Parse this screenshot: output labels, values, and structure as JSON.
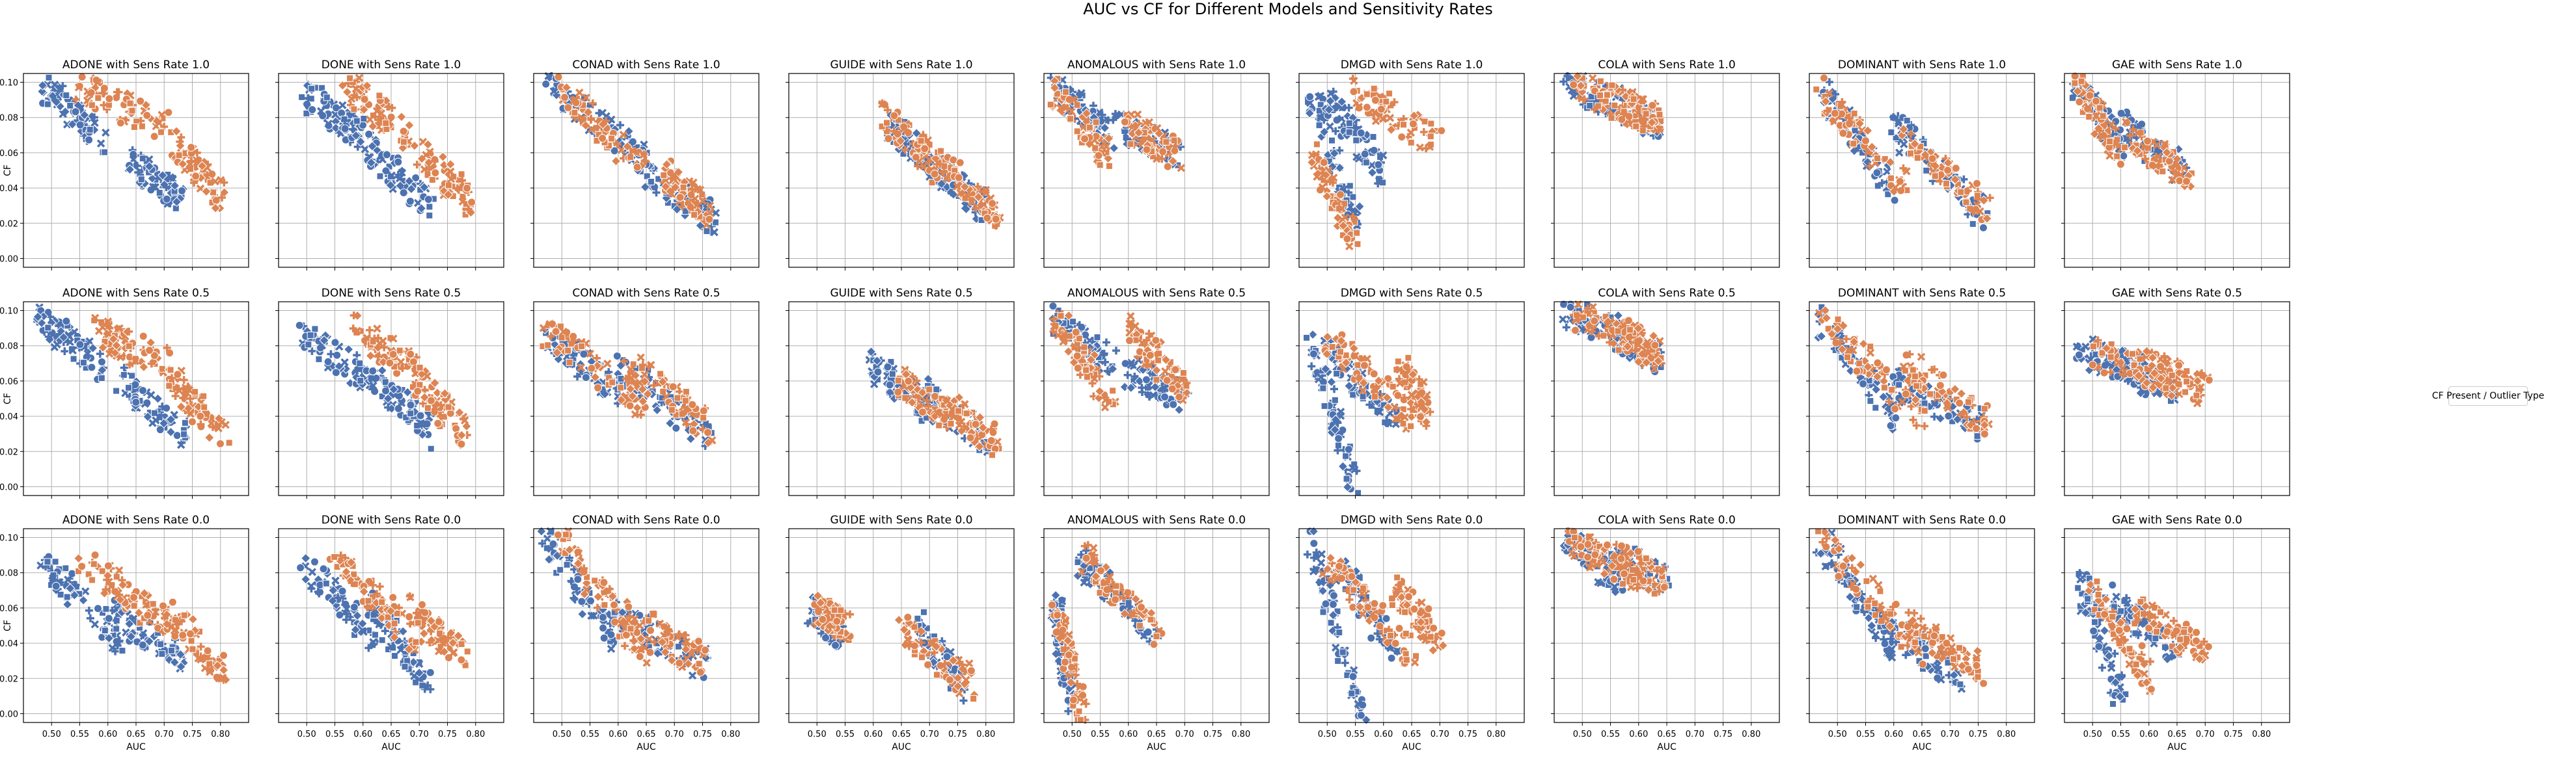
{
  "figure": {
    "title": "AUC vs CF for Different Models and Sensitivity Rates",
    "legend_title": "CF Present / Outlier Type",
    "colors": {
      "blue": "#4c72b0",
      "orange": "#dd8452",
      "grid": "#b0b0b0",
      "text": "#000000"
    }
  },
  "chart_data": {
    "type": "scatter",
    "layout": "3 rows x 9 columns, shared x and y axes",
    "xlabel": "AUC",
    "ylabel": "CF",
    "xlim": [
      0.45,
      0.85
    ],
    "ylim": [
      -0.005,
      0.105
    ],
    "xticks": [
      "0.50",
      "0.55",
      "0.60",
      "0.65",
      "0.70",
      "0.75",
      "0.80"
    ],
    "yticks": [
      "0.00",
      "0.02",
      "0.04",
      "0.06",
      "0.08",
      "0.10"
    ],
    "grid": true,
    "legend_placement": "center right",
    "markers": [
      "circle",
      "x",
      "plus",
      "square",
      "diamond"
    ],
    "models": [
      "ADONE",
      "DONE",
      "CONAD",
      "GUIDE",
      "ANOMALOUS",
      "DMGD",
      "COLA",
      "DOMINANT",
      "GAE"
    ],
    "sens_rates": [
      "1.0",
      "0.5",
      "0.0"
    ],
    "panels": [
      {
        "title": "ADONE with Sens Rate 1.0",
        "blue": {
          "x": [
            0.48,
            0.6
          ],
          "y": [
            0.098,
            0.066
          ],
          "x2": [
            0.64,
            0.73
          ],
          "y2": [
            0.055,
            0.035
          ]
        },
        "orange": {
          "x": [
            0.55,
            0.7
          ],
          "y": [
            0.098,
            0.075
          ],
          "x2": [
            0.72,
            0.8
          ],
          "y2": [
            0.065,
            0.035
          ]
        }
      },
      {
        "title": "DONE with Sens Rate 1.0",
        "blue": {
          "x": [
            0.49,
            0.6
          ],
          "y": [
            0.095,
            0.07
          ],
          "x2": [
            0.6,
            0.72
          ],
          "y2": [
            0.065,
            0.03
          ]
        },
        "orange": {
          "x": [
            0.57,
            0.68
          ],
          "y": [
            0.098,
            0.07
          ],
          "x2": [
            0.7,
            0.8
          ],
          "y2": [
            0.06,
            0.03
          ]
        }
      },
      {
        "title": "CONAD with Sens Rate 1.0",
        "blue": {
          "x": [
            0.47,
            0.65
          ],
          "y": [
            0.098,
            0.055
          ],
          "x2": [
            0.65,
            0.77
          ],
          "y2": [
            0.045,
            0.022
          ]
        },
        "orange": {
          "x": [
            0.5,
            0.65
          ],
          "y": [
            0.095,
            0.05
          ],
          "x2": [
            0.68,
            0.76
          ],
          "y2": [
            0.048,
            0.025
          ]
        }
      },
      {
        "title": "GUIDE with Sens Rate 1.0",
        "blue": {
          "x": [
            0.63,
            0.7
          ],
          "y": [
            0.075,
            0.055
          ],
          "x2": [
            0.7,
            0.8
          ],
          "y2": [
            0.055,
            0.028
          ]
        },
        "orange": {
          "x": [
            0.62,
            0.72
          ],
          "y": [
            0.08,
            0.05
          ],
          "x2": [
            0.72,
            0.82
          ],
          "y2": [
            0.055,
            0.025
          ]
        }
      },
      {
        "title": "ANOMALOUS with Sens Rate 1.0",
        "blue": {
          "x": [
            0.47,
            0.57
          ],
          "y": [
            0.095,
            0.07
          ],
          "x2": [
            0.58,
            0.69
          ],
          "y2": [
            0.075,
            0.06
          ]
        },
        "orange": {
          "x": [
            0.47,
            0.57
          ],
          "y": [
            0.095,
            0.055
          ],
          "x2": [
            0.6,
            0.69
          ],
          "y2": [
            0.075,
            0.058
          ]
        }
      },
      {
        "title": "DMGD with Sens Rate 1.0",
        "blue": {
          "x": [
            0.47,
            0.55
          ],
          "y": [
            0.095,
            0.02
          ],
          "x2": [
            0.5,
            0.6
          ],
          "y2": [
            0.09,
            0.05
          ]
        },
        "orange": {
          "x": [
            0.47,
            0.55
          ],
          "y": [
            0.06,
            0.01
          ],
          "x2": [
            0.55,
            0.7
          ],
          "y2": [
            0.095,
            0.065
          ]
        }
      },
      {
        "title": "COLA with Sens Rate 1.0",
        "blue": {
          "x": [
            0.47,
            0.6
          ],
          "y": [
            0.1,
            0.083
          ],
          "x2": [
            0.55,
            0.64
          ],
          "y2": [
            0.09,
            0.075
          ]
        },
        "orange": {
          "x": [
            0.48,
            0.62
          ],
          "y": [
            0.098,
            0.08
          ],
          "x2": [
            0.56,
            0.64
          ],
          "y2": [
            0.09,
            0.075
          ]
        }
      },
      {
        "title": "DOMINANT with Sens Rate 1.0",
        "blue": {
          "x": [
            0.47,
            0.6
          ],
          "y": [
            0.095,
            0.04
          ],
          "x2": [
            0.6,
            0.76
          ],
          "y2": [
            0.075,
            0.025
          ]
        },
        "orange": {
          "x": [
            0.47,
            0.62
          ],
          "y": [
            0.095,
            0.04
          ],
          "x2": [
            0.62,
            0.77
          ],
          "y2": [
            0.07,
            0.025
          ]
        }
      },
      {
        "title": "GAE with Sens Rate 1.0",
        "blue": {
          "x": [
            0.47,
            0.55
          ],
          "y": [
            0.1,
            0.065
          ],
          "x2": [
            0.55,
            0.66
          ],
          "y2": [
            0.075,
            0.05
          ]
        },
        "orange": {
          "x": [
            0.47,
            0.55
          ],
          "y": [
            0.1,
            0.06
          ],
          "x2": [
            0.56,
            0.68
          ],
          "y2": [
            0.07,
            0.045
          ]
        }
      },
      {
        "title": "ADONE with Sens Rate 0.5",
        "blue": {
          "x": [
            0.48,
            0.6
          ],
          "y": [
            0.095,
            0.065
          ],
          "x2": [
            0.62,
            0.74
          ],
          "y2": [
            0.06,
            0.028
          ]
        },
        "orange": {
          "x": [
            0.58,
            0.7
          ],
          "y": [
            0.088,
            0.07
          ],
          "x2": [
            0.7,
            0.81
          ],
          "y2": [
            0.065,
            0.028
          ]
        }
      },
      {
        "title": "DONE with Sens Rate 0.5",
        "blue": {
          "x": [
            0.49,
            0.62
          ],
          "y": [
            0.088,
            0.06
          ],
          "x2": [
            0.62,
            0.73
          ],
          "y2": [
            0.06,
            0.03
          ]
        },
        "orange": {
          "x": [
            0.58,
            0.7
          ],
          "y": [
            0.09,
            0.065
          ],
          "x2": [
            0.7,
            0.78
          ],
          "y2": [
            0.06,
            0.03
          ]
        }
      },
      {
        "title": "CONAD with Sens Rate 0.5",
        "blue": {
          "x": [
            0.47,
            0.62
          ],
          "y": [
            0.085,
            0.05
          ],
          "x2": [
            0.6,
            0.76
          ],
          "y2": [
            0.07,
            0.03
          ]
        },
        "orange": {
          "x": [
            0.47,
            0.65
          ],
          "y": [
            0.09,
            0.045
          ],
          "x2": [
            0.62,
            0.77
          ],
          "y2": [
            0.07,
            0.03
          ]
        }
      },
      {
        "title": "GUIDE with Sens Rate 0.5",
        "blue": {
          "x": [
            0.6,
            0.7
          ],
          "y": [
            0.068,
            0.045
          ],
          "x2": [
            0.68,
            0.8
          ],
          "y2": [
            0.055,
            0.025
          ]
        },
        "orange": {
          "x": [
            0.65,
            0.73
          ],
          "y": [
            0.06,
            0.04
          ],
          "x2": [
            0.72,
            0.82
          ],
          "y2": [
            0.05,
            0.025
          ]
        }
      },
      {
        "title": "ANOMALOUS with Sens Rate 0.5",
        "blue": {
          "x": [
            0.47,
            0.57
          ],
          "y": [
            0.095,
            0.07
          ],
          "x2": [
            0.6,
            0.7
          ],
          "y2": [
            0.065,
            0.05
          ]
        },
        "orange": {
          "x": [
            0.47,
            0.57
          ],
          "y": [
            0.095,
            0.05
          ],
          "x2": [
            0.6,
            0.7
          ],
          "y2": [
            0.09,
            0.055
          ]
        }
      },
      {
        "title": "DMGD with Sens Rate 0.5",
        "blue": {
          "x": [
            0.47,
            0.55
          ],
          "y": [
            0.085,
            0.0
          ],
          "x2": [
            0.5,
            0.62
          ],
          "y2": [
            0.075,
            0.04
          ]
        },
        "orange": {
          "x": [
            0.5,
            0.65
          ],
          "y": [
            0.085,
            0.04
          ],
          "x2": [
            0.63,
            0.68
          ],
          "y2": [
            0.07,
            0.04
          ]
        }
      },
      {
        "title": "COLA with Sens Rate 0.5",
        "blue": {
          "x": [
            0.47,
            0.6
          ],
          "y": [
            0.1,
            0.08
          ],
          "x2": [
            0.55,
            0.64
          ],
          "y2": [
            0.09,
            0.072
          ]
        },
        "orange": {
          "x": [
            0.48,
            0.62
          ],
          "y": [
            0.098,
            0.078
          ],
          "x2": [
            0.56,
            0.64
          ],
          "y2": [
            0.09,
            0.072
          ]
        }
      },
      {
        "title": "DOMINANT with Sens Rate 0.5",
        "blue": {
          "x": [
            0.47,
            0.6
          ],
          "y": [
            0.095,
            0.04
          ],
          "x2": [
            0.6,
            0.75
          ],
          "y2": [
            0.06,
            0.035
          ]
        },
        "orange": {
          "x": [
            0.47,
            0.65
          ],
          "y": [
            0.095,
            0.04
          ],
          "x2": [
            0.62,
            0.77
          ],
          "y2": [
            0.07,
            0.035
          ]
        }
      },
      {
        "title": "GAE with Sens Rate 0.5",
        "blue": {
          "x": [
            0.47,
            0.6
          ],
          "y": [
            0.08,
            0.06
          ],
          "x2": [
            0.55,
            0.65
          ],
          "y2": [
            0.07,
            0.055
          ]
        },
        "orange": {
          "x": [
            0.5,
            0.65
          ],
          "y": [
            0.075,
            0.06
          ],
          "x2": [
            0.6,
            0.7
          ],
          "y2": [
            0.07,
            0.055
          ]
        }
      },
      {
        "title": "ADONE with Sens Rate 0.0",
        "blue": {
          "x": [
            0.48,
            0.62
          ],
          "y": [
            0.09,
            0.04
          ],
          "x2": [
            0.6,
            0.74
          ],
          "y2": [
            0.06,
            0.03
          ]
        },
        "orange": {
          "x": [
            0.55,
            0.7
          ],
          "y": [
            0.09,
            0.05
          ],
          "x2": [
            0.7,
            0.81
          ],
          "y2": [
            0.06,
            0.022
          ]
        }
      },
      {
        "title": "DONE with Sens Rate 0.0",
        "blue": {
          "x": [
            0.49,
            0.62
          ],
          "y": [
            0.085,
            0.045
          ],
          "x2": [
            0.62,
            0.72
          ],
          "y2": [
            0.06,
            0.015
          ]
        },
        "orange": {
          "x": [
            0.55,
            0.7
          ],
          "y": [
            0.088,
            0.04
          ],
          "x2": [
            0.68,
            0.78
          ],
          "y2": [
            0.06,
            0.035
          ]
        }
      },
      {
        "title": "CONAD with Sens Rate 0.0",
        "blue": {
          "x": [
            0.47,
            0.6
          ],
          "y": [
            0.1,
            0.04
          ],
          "x2": [
            0.58,
            0.75
          ],
          "y2": [
            0.06,
            0.028
          ]
        },
        "orange": {
          "x": [
            0.5,
            0.65
          ],
          "y": [
            0.1,
            0.03
          ],
          "x2": [
            0.62,
            0.76
          ],
          "y2": [
            0.055,
            0.028
          ]
        }
      },
      {
        "title": "GUIDE with Sens Rate 0.0",
        "blue": {
          "x": [
            0.49,
            0.54
          ],
          "y": [
            0.06,
            0.045
          ],
          "x2": [
            0.68,
            0.76
          ],
          "y2": [
            0.05,
            0.015
          ]
        },
        "orange": {
          "x": [
            0.5,
            0.55
          ],
          "y": [
            0.06,
            0.05
          ],
          "x2": [
            0.65,
            0.78
          ],
          "y2": [
            0.048,
            0.015
          ]
        }
      },
      {
        "title": "ANOMALOUS with Sens Rate 0.0",
        "blue": {
          "x": [
            0.47,
            0.5
          ],
          "y": [
            0.065,
            0.0
          ],
          "x2": [
            0.5,
            0.65
          ],
          "y2": [
            0.09,
            0.045
          ]
        },
        "orange": {
          "x": [
            0.47,
            0.52
          ],
          "y": [
            0.06,
            0.0
          ],
          "x2": [
            0.52,
            0.65
          ],
          "y2": [
            0.09,
            0.045
          ]
        }
      },
      {
        "title": "DMGD with Sens Rate 0.0",
        "blue": {
          "x": [
            0.47,
            0.56
          ],
          "y": [
            0.1,
            0.0
          ],
          "x2": [
            0.52,
            0.62
          ],
          "y2": [
            0.085,
            0.035
          ]
        },
        "orange": {
          "x": [
            0.5,
            0.65
          ],
          "y": [
            0.085,
            0.035
          ],
          "x2": [
            0.62,
            0.7
          ],
          "y2": [
            0.07,
            0.04
          ]
        }
      },
      {
        "title": "COLA with Sens Rate 0.0",
        "blue": {
          "x": [
            0.47,
            0.58
          ],
          "y": [
            0.1,
            0.072
          ],
          "x2": [
            0.55,
            0.65
          ],
          "y2": [
            0.09,
            0.075
          ]
        },
        "orange": {
          "x": [
            0.48,
            0.62
          ],
          "y": [
            0.098,
            0.075
          ],
          "x2": [
            0.56,
            0.65
          ],
          "y2": [
            0.088,
            0.075
          ]
        }
      },
      {
        "title": "DOMINANT with Sens Rate 0.0",
        "blue": {
          "x": [
            0.47,
            0.6
          ],
          "y": [
            0.1,
            0.035
          ],
          "x2": [
            0.58,
            0.72
          ],
          "y2": [
            0.05,
            0.02
          ]
        },
        "orange": {
          "x": [
            0.47,
            0.65
          ],
          "y": [
            0.1,
            0.035
          ],
          "x2": [
            0.62,
            0.76
          ],
          "y2": [
            0.05,
            0.025
          ]
        }
      },
      {
        "title": "GAE with Sens Rate 0.0",
        "blue": {
          "x": [
            0.48,
            0.55
          ],
          "y": [
            0.075,
            0.01
          ],
          "x2": [
            0.53,
            0.65
          ],
          "y2": [
            0.065,
            0.035
          ]
        },
        "orange": {
          "x": [
            0.5,
            0.6
          ],
          "y": [
            0.07,
            0.02
          ],
          "x2": [
            0.58,
            0.7
          ],
          "y2": [
            0.06,
            0.035
          ]
        }
      }
    ]
  }
}
